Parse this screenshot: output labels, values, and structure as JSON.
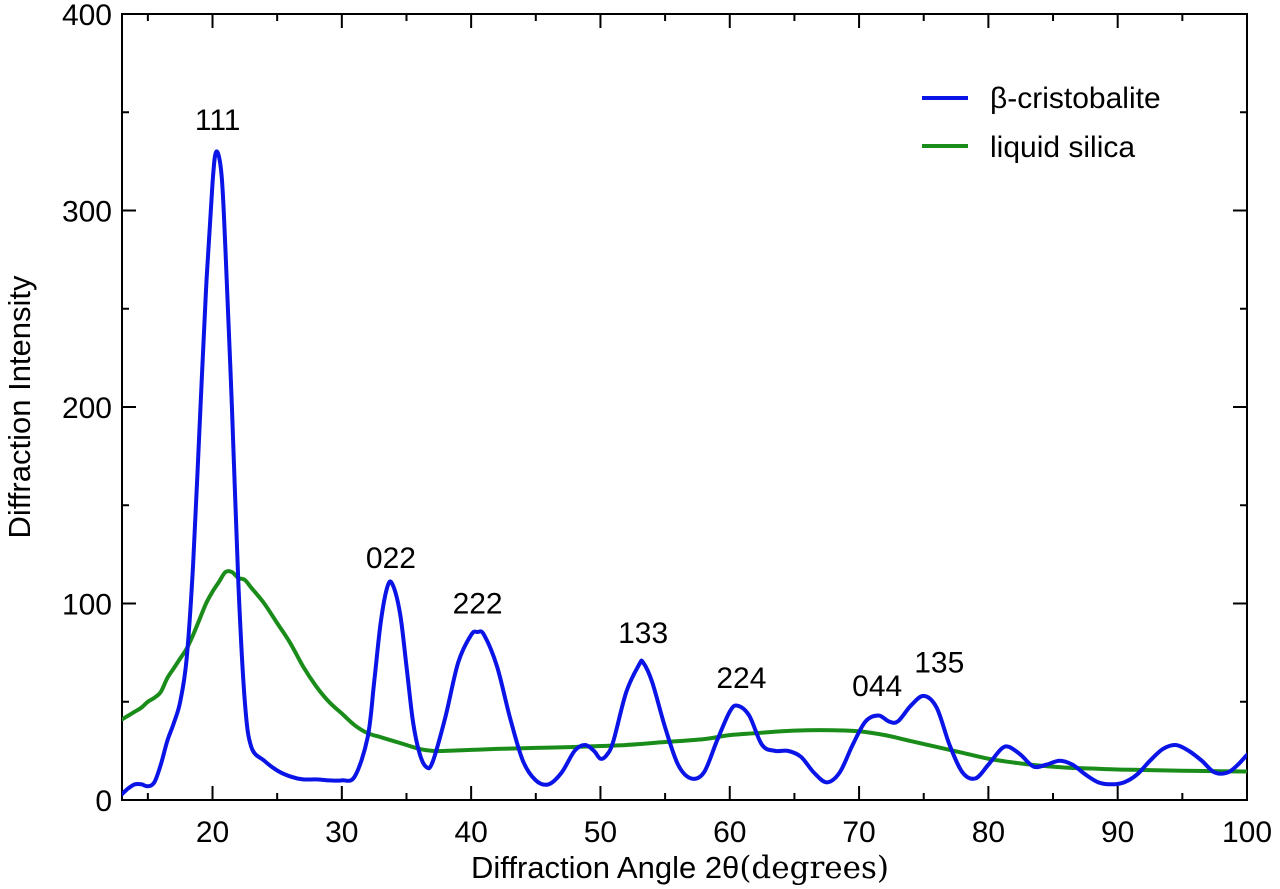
{
  "chart_data": {
    "type": "line",
    "xlabel": "Diffraction Angle 2θ",
    "xlabel_unit": "(degrees)",
    "ylabel": "Diffraction Intensity",
    "xlim": [
      13,
      100
    ],
    "ylim": [
      0,
      400
    ],
    "x_ticks": [
      20,
      30,
      40,
      50,
      60,
      70,
      80,
      90,
      100
    ],
    "y_ticks": [
      0,
      100,
      200,
      300,
      400
    ],
    "grid": false,
    "legend_position": "top-right",
    "series": [
      {
        "name": "β-cristobalite",
        "color": "#0a14e6",
        "points": [
          [
            13,
            3
          ],
          [
            13.5,
            6
          ],
          [
            14,
            8
          ],
          [
            14.5,
            8
          ],
          [
            15,
            7
          ],
          [
            15.5,
            9
          ],
          [
            16,
            18
          ],
          [
            16.5,
            30
          ],
          [
            17,
            39
          ],
          [
            17.5,
            50
          ],
          [
            18,
            72
          ],
          [
            18.5,
            120
          ],
          [
            19,
            190
          ],
          [
            19.5,
            260
          ],
          [
            20,
            314
          ],
          [
            20.3,
            330
          ],
          [
            20.7,
            318
          ],
          [
            21,
            280
          ],
          [
            21.5,
            200
          ],
          [
            22,
            110
          ],
          [
            22.5,
            50
          ],
          [
            23,
            27
          ],
          [
            24,
            20
          ],
          [
            25,
            15
          ],
          [
            26,
            12
          ],
          [
            27,
            10.5
          ],
          [
            28,
            10.5
          ],
          [
            29,
            10
          ],
          [
            30,
            10
          ],
          [
            31,
            12
          ],
          [
            32,
            32
          ],
          [
            32.5,
            60
          ],
          [
            33,
            90
          ],
          [
            33.5,
            108
          ],
          [
            33.9,
            110
          ],
          [
            34.5,
            95
          ],
          [
            35,
            68
          ],
          [
            35.5,
            40
          ],
          [
            36,
            24
          ],
          [
            36.5,
            17
          ],
          [
            37,
            19
          ],
          [
            38,
            42
          ],
          [
            39,
            70
          ],
          [
            40,
            84
          ],
          [
            40.5,
            85.5
          ],
          [
            41,
            84
          ],
          [
            42,
            68
          ],
          [
            43,
            42
          ],
          [
            44,
            20
          ],
          [
            45,
            10
          ],
          [
            46,
            8
          ],
          [
            47,
            14
          ],
          [
            48,
            25
          ],
          [
            48.8,
            28
          ],
          [
            49.5,
            25
          ],
          [
            50,
            21
          ],
          [
            50.5,
            23
          ],
          [
            51,
            30
          ],
          [
            52,
            55
          ],
          [
            53,
            69
          ],
          [
            53.3,
            70
          ],
          [
            54,
            60
          ],
          [
            55,
            37
          ],
          [
            56,
            18
          ],
          [
            57,
            11
          ],
          [
            58,
            14
          ],
          [
            59,
            30
          ],
          [
            60,
            45
          ],
          [
            60.6,
            48
          ],
          [
            61.5,
            43
          ],
          [
            62.5,
            28
          ],
          [
            63.5,
            25
          ],
          [
            64.5,
            25
          ],
          [
            65.5,
            22
          ],
          [
            66.5,
            14
          ],
          [
            67.5,
            9
          ],
          [
            68.5,
            14
          ],
          [
            69.5,
            28
          ],
          [
            70.5,
            40
          ],
          [
            71.5,
            43
          ],
          [
            72.3,
            40
          ],
          [
            73,
            40
          ],
          [
            74,
            48
          ],
          [
            75,
            53
          ],
          [
            76,
            47
          ],
          [
            77,
            28
          ],
          [
            78,
            14
          ],
          [
            79,
            11
          ],
          [
            80,
            18
          ],
          [
            81,
            26
          ],
          [
            81.6,
            27
          ],
          [
            82.5,
            23
          ],
          [
            83.5,
            17
          ],
          [
            84.5,
            18
          ],
          [
            85.5,
            20
          ],
          [
            86.5,
            18
          ],
          [
            87.5,
            13
          ],
          [
            88.5,
            9
          ],
          [
            89.5,
            8
          ],
          [
            90.5,
            9
          ],
          [
            91.5,
            13
          ],
          [
            92.5,
            20
          ],
          [
            93.5,
            26
          ],
          [
            94.5,
            28
          ],
          [
            95.5,
            25
          ],
          [
            96.5,
            20
          ],
          [
            97.5,
            14
          ],
          [
            98.5,
            14
          ],
          [
            99.3,
            18
          ],
          [
            100,
            23
          ]
        ]
      },
      {
        "name": "liquid silica",
        "color": "#1a8c1a",
        "points": [
          [
            13,
            41
          ],
          [
            13.5,
            43
          ],
          [
            14,
            45
          ],
          [
            14.5,
            47
          ],
          [
            15,
            50
          ],
          [
            15.5,
            52
          ],
          [
            16,
            55
          ],
          [
            16.5,
            62
          ],
          [
            17,
            67
          ],
          [
            17.5,
            72
          ],
          [
            18,
            77
          ],
          [
            18.5,
            84
          ],
          [
            19,
            92
          ],
          [
            19.5,
            100
          ],
          [
            20,
            106
          ],
          [
            20.5,
            111
          ],
          [
            21,
            116
          ],
          [
            21.5,
            116
          ],
          [
            22,
            113
          ],
          [
            22.5,
            112
          ],
          [
            23,
            108
          ],
          [
            24,
            100
          ],
          [
            25,
            90
          ],
          [
            26,
            80
          ],
          [
            27,
            68
          ],
          [
            28,
            58
          ],
          [
            29,
            50
          ],
          [
            30,
            44
          ],
          [
            31,
            38
          ],
          [
            32,
            34
          ],
          [
            33,
            32
          ],
          [
            34,
            30
          ],
          [
            35,
            28
          ],
          [
            36,
            26
          ],
          [
            37,
            25
          ],
          [
            38,
            25
          ],
          [
            40,
            25.5
          ],
          [
            42,
            26
          ],
          [
            45,
            26.5
          ],
          [
            48,
            27
          ],
          [
            50,
            27.5
          ],
          [
            52,
            28
          ],
          [
            55,
            29.5
          ],
          [
            58,
            31
          ],
          [
            60,
            33
          ],
          [
            62,
            34
          ],
          [
            64,
            35
          ],
          [
            66,
            35.5
          ],
          [
            68,
            35.5
          ],
          [
            70,
            35
          ],
          [
            72,
            33
          ],
          [
            74,
            30
          ],
          [
            76,
            27
          ],
          [
            78,
            24
          ],
          [
            80,
            21
          ],
          [
            82,
            19
          ],
          [
            84,
            17.5
          ],
          [
            86,
            16.5
          ],
          [
            88,
            16
          ],
          [
            90,
            15.5
          ],
          [
            92,
            15.3
          ],
          [
            94,
            15
          ],
          [
            96,
            14.8
          ],
          [
            98,
            14.6
          ],
          [
            100,
            14.5
          ]
        ]
      }
    ],
    "annotations": [
      {
        "text": "111",
        "x": 20.4,
        "y": 341
      },
      {
        "text": "022",
        "x": 33.8,
        "y": 118
      },
      {
        "text": "222",
        "x": 40.5,
        "y": 95
      },
      {
        "text": "133",
        "x": 53.3,
        "y": 80
      },
      {
        "text": "224",
        "x": 60.9,
        "y": 57
      },
      {
        "text": "044",
        "x": 71.4,
        "y": 53
      },
      {
        "text": "135",
        "x": 76.2,
        "y": 65
      }
    ]
  }
}
